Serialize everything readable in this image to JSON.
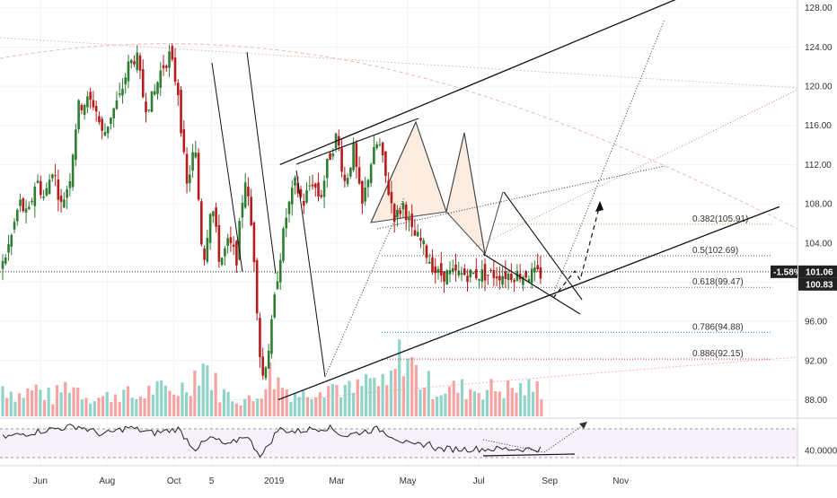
{
  "chart_data": {
    "type": "candlestick",
    "title": "",
    "price_axis": {
      "ticks": [
        "128.00",
        "124.00",
        "120.00",
        "116.00",
        "112.00",
        "108.00",
        "104.00",
        "100.00",
        "96.00",
        "92.00",
        "88.00"
      ],
      "tick_values": [
        128,
        124,
        120,
        116,
        112,
        108,
        104,
        100,
        96,
        92,
        88
      ],
      "ylim": [
        86.3,
        128.8
      ]
    },
    "rsi_axis": {
      "ticks": [
        "40.0000"
      ],
      "tick_values": [
        40
      ],
      "ylim": [
        20,
        85
      ],
      "upper_band": 70,
      "lower_band": 30
    },
    "time_axis": {
      "labels": [
        "Jun",
        "Aug",
        "Oct",
        "5",
        "2019",
        "Mar",
        "May",
        "Jul",
        "Sep",
        "Nov"
      ],
      "label_positions": [
        4.5,
        12.5,
        20.5,
        25,
        32.5,
        40,
        48.5,
        57,
        65.5,
        74
      ]
    },
    "current_price": {
      "value": 101.06,
      "change": "-1.58%",
      "label": "101.06"
    },
    "price_tag_secondary": {
      "value": 100.83,
      "label": "100.83"
    },
    "fibonacci_levels": [
      {
        "ratio": 0.382,
        "price": 105.91,
        "label": "0.382(105.91)",
        "color": "#8bc34a"
      },
      {
        "ratio": 0.5,
        "price": 102.69,
        "label": "0.5(102.69)",
        "color": "#555555"
      },
      {
        "ratio": 0.618,
        "price": 99.47,
        "label": "0.618(99.47)",
        "color": "#555555"
      },
      {
        "ratio": 0.786,
        "price": 94.88,
        "label": "0.786(94.88)",
        "color": "#2196f3"
      },
      {
        "ratio": 0.886,
        "price": 92.15,
        "label": "0.886(92.15)",
        "color": "#e53935"
      }
    ],
    "price_path": [
      [
        0,
        101.8
      ],
      [
        1,
        104.5
      ],
      [
        2,
        108.2
      ],
      [
        3,
        106.5
      ],
      [
        4,
        110.6
      ],
      [
        5,
        108.5
      ],
      [
        6,
        111.8
      ],
      [
        7,
        107.8
      ],
      [
        8,
        110.5
      ],
      [
        9,
        117.8
      ],
      [
        10,
        118.5
      ],
      [
        11,
        118.2
      ],
      [
        12,
        114.8
      ],
      [
        13,
        117.2
      ],
      [
        14,
        118.8
      ],
      [
        15,
        122.0
      ],
      [
        16,
        123.2
      ],
      [
        17,
        118.0
      ],
      [
        18,
        118.8
      ],
      [
        19,
        121.8
      ],
      [
        20,
        123.2
      ],
      [
        21,
        119.5
      ],
      [
        22,
        109.5
      ],
      [
        23,
        114.0
      ],
      [
        24,
        101.8
      ],
      [
        25,
        108.5
      ],
      [
        26,
        102.0
      ],
      [
        27,
        104.0
      ],
      [
        28,
        102.5
      ],
      [
        29,
        111.0
      ],
      [
        30,
        104.0
      ],
      [
        31,
        89.8
      ],
      [
        32,
        94.0
      ],
      [
        33,
        101.5
      ],
      [
        34,
        107.0
      ],
      [
        35,
        110.0
      ],
      [
        36,
        108.0
      ],
      [
        37,
        110.5
      ],
      [
        38,
        108.5
      ],
      [
        39,
        112.5
      ],
      [
        40,
        115.0
      ],
      [
        41,
        110.0
      ],
      [
        42,
        113.5
      ],
      [
        43,
        107.5
      ],
      [
        44,
        112.0
      ],
      [
        45,
        114.5
      ],
      [
        46,
        110.0
      ],
      [
        47,
        106.5
      ],
      [
        48,
        108.0
      ],
      [
        49,
        105.0
      ],
      [
        50,
        104.2
      ],
      [
        51,
        102.5
      ],
      [
        52,
        100.8
      ]
    ],
    "volume_path": [
      [
        0,
        10
      ],
      [
        2,
        7
      ],
      [
        4,
        9
      ],
      [
        6,
        6
      ],
      [
        8,
        11
      ],
      [
        10,
        7
      ],
      [
        12,
        6
      ],
      [
        14,
        8
      ],
      [
        16,
        6
      ],
      [
        18,
        9
      ],
      [
        20,
        8
      ],
      [
        22,
        10
      ],
      [
        24,
        18
      ],
      [
        26,
        8
      ],
      [
        28,
        6
      ],
      [
        30,
        5
      ],
      [
        32,
        14
      ],
      [
        34,
        9
      ],
      [
        36,
        7
      ],
      [
        38,
        11
      ],
      [
        40,
        10
      ],
      [
        42,
        8
      ],
      [
        44,
        12
      ],
      [
        46,
        9
      ],
      [
        48,
        22
      ],
      [
        50,
        12
      ],
      [
        52,
        9
      ]
    ],
    "volume_colors": {
      "up": "#26a69a",
      "down": "#ef5350"
    },
    "rsi_path": [
      [
        0,
        58
      ],
      [
        3,
        64
      ],
      [
        6,
        70
      ],
      [
        9,
        74
      ],
      [
        12,
        62
      ],
      [
        15,
        72
      ],
      [
        18,
        64
      ],
      [
        21,
        70
      ],
      [
        23,
        42
      ],
      [
        25,
        58
      ],
      [
        27,
        46
      ],
      [
        29,
        62
      ],
      [
        31,
        32
      ],
      [
        33,
        70
      ],
      [
        35,
        66
      ],
      [
        37,
        70
      ],
      [
        39,
        72
      ],
      [
        41,
        60
      ],
      [
        43,
        66
      ],
      [
        45,
        70
      ],
      [
        47,
        58
      ],
      [
        49,
        46
      ],
      [
        51,
        50
      ],
      [
        52,
        42
      ]
    ],
    "drawn_lines": {
      "channel_upper": [
        [
          33.2,
          112.0
        ],
        [
          81,
          129.0
        ]
      ],
      "channel_lower": [
        [
          33.0,
          88.0
        ],
        [
          93,
          107.7
        ]
      ],
      "bearish_wedge_upper": [
        [
          56,
          109.3
        ],
        [
          64.5,
          98.0
        ]
      ],
      "bearish_wedge_lower": [
        [
          53.5,
          102.9
        ],
        [
          64.0,
          98.1
        ]
      ],
      "projection_dashed": [
        [
          62.5,
          99.0
        ],
        [
          67,
          108.0
        ]
      ],
      "projection_dotted": [
        [
          62.5,
          99.0
        ],
        [
          74,
          126.0
        ]
      ]
    },
    "grid": true,
    "colors": {
      "up": "#26a69a",
      "down": "#ef5350",
      "background": "#ffffff",
      "pattern_fill": "#fbe9d8"
    }
  }
}
